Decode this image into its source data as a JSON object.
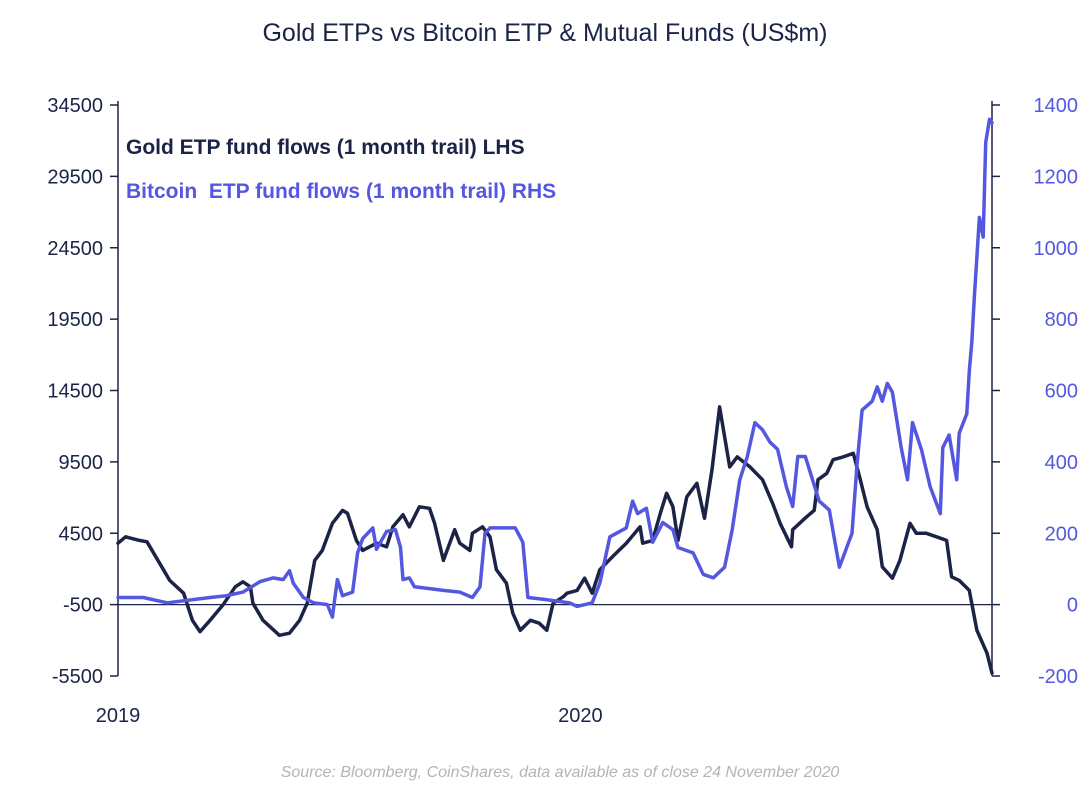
{
  "chart_data": {
    "type": "line",
    "title": "Gold ETPs vs Bitcoin ETP & Mutual Funds (US$m)",
    "source": "Source: Bloomberg, CoinShares, data available as of close 24 November 2020",
    "x_unit": "days since 1 Jan 2019",
    "xlim": [
      0,
      693
    ],
    "x_ticks": [
      {
        "value": 0,
        "label": "2019"
      },
      {
        "value": 365,
        "label": "2020"
      }
    ],
    "left_axis": {
      "ylim": [
        -5500,
        34500
      ],
      "ticks": [
        -5500,
        -500,
        4500,
        9500,
        14500,
        19500,
        24500,
        29500,
        34500
      ]
    },
    "right_axis": {
      "ylim": [
        -200,
        1400
      ],
      "ticks": [
        -200,
        0,
        200,
        400,
        600,
        800,
        1000,
        1200,
        1400
      ]
    },
    "zero_line": "right axis 0",
    "legend_placement": "top-left",
    "colors": {
      "gold": "#1b2447",
      "bitcoin": "#5457e0",
      "axis": "#1b2447"
    },
    "series": [
      {
        "name": "Gold ETP fund flows (1 month trail) LHS",
        "axis": "left",
        "color": "#1b2447",
        "points": [
          [
            0,
            3800
          ],
          [
            6,
            4250
          ],
          [
            17,
            4000
          ],
          [
            23,
            3900
          ],
          [
            33,
            2400
          ],
          [
            41,
            1200
          ],
          [
            52,
            300
          ],
          [
            59,
            -1600
          ],
          [
            65,
            -2400
          ],
          [
            73,
            -1600
          ],
          [
            83,
            -550
          ],
          [
            93,
            750
          ],
          [
            99,
            1100
          ],
          [
            105,
            750
          ],
          [
            107,
            -400
          ],
          [
            115,
            -1600
          ],
          [
            128,
            -2650
          ],
          [
            136,
            -2500
          ],
          [
            144,
            -1600
          ],
          [
            150,
            -400
          ],
          [
            156,
            2600
          ],
          [
            162,
            3300
          ],
          [
            170,
            5200
          ],
          [
            178,
            6100
          ],
          [
            182,
            5900
          ],
          [
            189,
            4000
          ],
          [
            194,
            3300
          ],
          [
            205,
            3800
          ],
          [
            213,
            3550
          ],
          [
            218,
            4950
          ],
          [
            226,
            5800
          ],
          [
            231,
            4950
          ],
          [
            239,
            6350
          ],
          [
            247,
            6250
          ],
          [
            251,
            5200
          ],
          [
            258,
            2600
          ],
          [
            267,
            4750
          ],
          [
            271,
            3800
          ],
          [
            279,
            3300
          ],
          [
            281,
            4500
          ],
          [
            289,
            4950
          ],
          [
            295,
            4250
          ],
          [
            300,
            1950
          ],
          [
            308,
            1000
          ],
          [
            313,
            -1100
          ],
          [
            319,
            -2300
          ],
          [
            327,
            -1600
          ],
          [
            334,
            -1800
          ],
          [
            340,
            -2300
          ],
          [
            345,
            -400
          ],
          [
            353,
            50
          ],
          [
            356,
            300
          ],
          [
            364,
            500
          ],
          [
            370,
            1350
          ],
          [
            376,
            300
          ],
          [
            382,
            1950
          ],
          [
            392,
            2850
          ],
          [
            403,
            3800
          ],
          [
            414,
            4950
          ],
          [
            416,
            3800
          ],
          [
            424,
            4000
          ],
          [
            430,
            5900
          ],
          [
            435,
            7300
          ],
          [
            440,
            6350
          ],
          [
            444,
            4000
          ],
          [
            451,
            7050
          ],
          [
            459,
            8000
          ],
          [
            465,
            5550
          ],
          [
            471,
            8950
          ],
          [
            477,
            13350
          ],
          [
            485,
            9150
          ],
          [
            491,
            9850
          ],
          [
            501,
            9150
          ],
          [
            511,
            8250
          ],
          [
            519,
            6600
          ],
          [
            525,
            5200
          ],
          [
            534,
            3550
          ],
          [
            535,
            4750
          ],
          [
            546,
            5650
          ],
          [
            552,
            6100
          ],
          [
            555,
            8250
          ],
          [
            562,
            8700
          ],
          [
            567,
            9650
          ],
          [
            575,
            9850
          ],
          [
            583,
            10100
          ],
          [
            588,
            8450
          ],
          [
            594,
            6350
          ],
          [
            602,
            4750
          ],
          [
            606,
            2150
          ],
          [
            614,
            1350
          ],
          [
            620,
            2600
          ],
          [
            628,
            5200
          ],
          [
            633,
            4500
          ],
          [
            641,
            4500
          ],
          [
            649,
            4250
          ],
          [
            657,
            4000
          ],
          [
            661,
            1450
          ],
          [
            667,
            1200
          ],
          [
            675,
            500
          ],
          [
            681,
            -2300
          ],
          [
            689,
            -3900
          ],
          [
            693,
            -5300
          ]
        ]
      },
      {
        "name": "Bitcoin  ETP fund flows (1 month trail) RHS",
        "axis": "right",
        "color": "#5457e0",
        "points": [
          [
            0,
            20
          ],
          [
            20,
            20
          ],
          [
            39,
            5
          ],
          [
            73,
            20
          ],
          [
            86,
            25
          ],
          [
            99,
            35
          ],
          [
            113,
            65
          ],
          [
            123,
            75
          ],
          [
            131,
            70
          ],
          [
            136,
            95
          ],
          [
            139,
            60
          ],
          [
            147,
            20
          ],
          [
            155,
            5
          ],
          [
            166,
            0
          ],
          [
            170,
            -35
          ],
          [
            172,
            20
          ],
          [
            174,
            70
          ],
          [
            178,
            25
          ],
          [
            186,
            35
          ],
          [
            190,
            145
          ],
          [
            194,
            185
          ],
          [
            202,
            215
          ],
          [
            205,
            155
          ],
          [
            213,
            205
          ],
          [
            220,
            210
          ],
          [
            224,
            160
          ],
          [
            226,
            70
          ],
          [
            231,
            75
          ],
          [
            235,
            50
          ],
          [
            247,
            45
          ],
          [
            258,
            40
          ],
          [
            271,
            35
          ],
          [
            281,
            20
          ],
          [
            287,
            50
          ],
          [
            291,
            200
          ],
          [
            295,
            215
          ],
          [
            315,
            215
          ],
          [
            321,
            175
          ],
          [
            325,
            20
          ],
          [
            337,
            15
          ],
          [
            358,
            5
          ],
          [
            364,
            -5
          ],
          [
            376,
            5
          ],
          [
            382,
            60
          ],
          [
            390,
            190
          ],
          [
            403,
            215
          ],
          [
            408,
            290
          ],
          [
            412,
            255
          ],
          [
            419,
            270
          ],
          [
            424,
            175
          ],
          [
            432,
            230
          ],
          [
            440,
            210
          ],
          [
            444,
            160
          ],
          [
            456,
            145
          ],
          [
            464,
            85
          ],
          [
            472,
            75
          ],
          [
            481,
            105
          ],
          [
            487,
            210
          ],
          [
            493,
            350
          ],
          [
            499,
            415
          ],
          [
            505,
            510
          ],
          [
            511,
            490
          ],
          [
            517,
            455
          ],
          [
            523,
            435
          ],
          [
            530,
            330
          ],
          [
            535,
            275
          ],
          [
            539,
            415
          ],
          [
            545,
            415
          ],
          [
            556,
            290
          ],
          [
            564,
            265
          ],
          [
            572,
            105
          ],
          [
            582,
            200
          ],
          [
            586,
            395
          ],
          [
            590,
            545
          ],
          [
            598,
            570
          ],
          [
            602,
            610
          ],
          [
            606,
            570
          ],
          [
            610,
            620
          ],
          [
            614,
            595
          ],
          [
            621,
            440
          ],
          [
            626,
            350
          ],
          [
            630,
            510
          ],
          [
            637,
            435
          ],
          [
            644,
            330
          ],
          [
            652,
            255
          ],
          [
            654,
            440
          ],
          [
            659,
            475
          ],
          [
            665,
            350
          ],
          [
            667,
            480
          ],
          [
            673,
            535
          ],
          [
            675,
            655
          ],
          [
            677,
            735
          ],
          [
            679,
            860
          ],
          [
            683,
            1085
          ],
          [
            686,
            1030
          ],
          [
            688,
            1295
          ],
          [
            691,
            1360
          ],
          [
            693,
            1350
          ]
        ]
      }
    ]
  }
}
